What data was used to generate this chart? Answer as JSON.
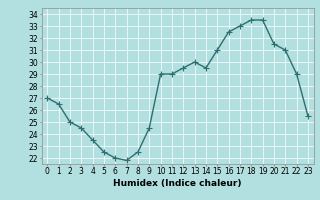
{
  "x": [
    0,
    1,
    2,
    3,
    4,
    5,
    6,
    7,
    8,
    9,
    10,
    11,
    12,
    13,
    14,
    15,
    16,
    17,
    18,
    19,
    20,
    21,
    22,
    23
  ],
  "y": [
    27.0,
    26.5,
    25.0,
    24.5,
    23.5,
    22.5,
    22.0,
    21.8,
    22.5,
    24.5,
    29.0,
    29.0,
    29.5,
    30.0,
    29.5,
    31.0,
    32.5,
    33.0,
    33.5,
    33.5,
    31.5,
    31.0,
    29.0,
    25.5
  ],
  "line_color": "#2e7070",
  "marker": "+",
  "marker_color": "#2e7070",
  "bg_color": "#b2dfdf",
  "grid_color": "#ffffff",
  "xlabel": "Humidex (Indice chaleur)",
  "xlim": [
    -0.5,
    23.5
  ],
  "ylim": [
    21.5,
    34.5
  ],
  "yticks": [
    22,
    23,
    24,
    25,
    26,
    27,
    28,
    29,
    30,
    31,
    32,
    33,
    34
  ],
  "xticks": [
    0,
    1,
    2,
    3,
    4,
    5,
    6,
    7,
    8,
    9,
    10,
    11,
    12,
    13,
    14,
    15,
    16,
    17,
    18,
    19,
    20,
    21,
    22,
    23
  ],
  "tick_fontsize": 5.5,
  "label_fontsize": 6.5,
  "line_width": 1.0,
  "marker_size": 4
}
